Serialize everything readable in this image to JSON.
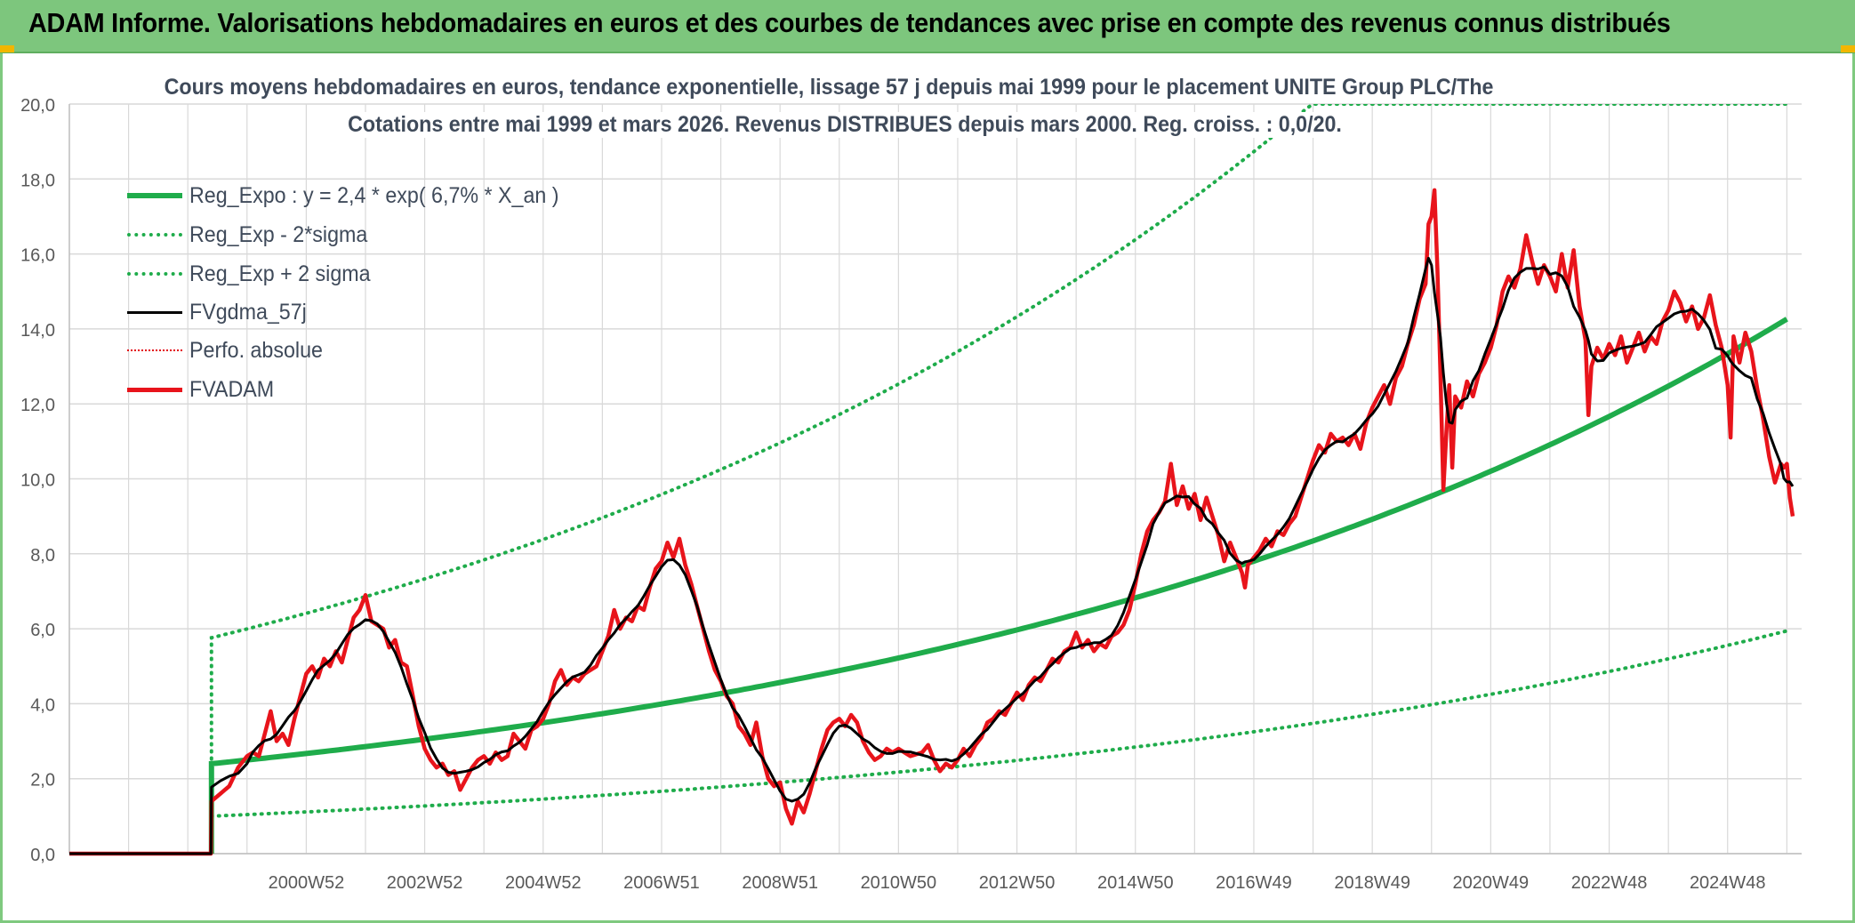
{
  "banner": {
    "title": "ADAM Informe. Valorisations hebdomadaires en euros et des courbes de tendances avec prise en compte des revenus connus distribués"
  },
  "chart_data": {
    "type": "line",
    "title_line1": "Cours moyens hebdomadaires en euros, tendance exponentielle, lissage 57 j depuis mai 1999 pour le placement UNITE Group PLC/The",
    "title_line2": "Cotations entre mai 1999 et mars 2026. Revenus DISTRIBUES depuis mars 2000. Reg. croiss. : 0,0/20.",
    "xlabel": "",
    "ylabel": "",
    "x_tick_labels": [
      "2000W52",
      "2002W52",
      "2004W52",
      "2006W51",
      "2008W51",
      "2010W50",
      "2012W50",
      "2014W50",
      "2016W49",
      "2018W49",
      "2020W49",
      "2022W48",
      "2024W48"
    ],
    "x_tick_years": [
      2001.0,
      2003.0,
      2005.0,
      2007.0,
      2009.0,
      2011.0,
      2013.0,
      2015.0,
      2017.0,
      2019.0,
      2021.0,
      2023.0,
      2025.0
    ],
    "x_range": [
      1997.0,
      2026.25
    ],
    "y_tick_labels": [
      "0,0",
      "2,0",
      "4,0",
      "6,0",
      "8,0",
      "10,0",
      "12,0",
      "14,0",
      "16,0",
      "18,0",
      "20,0"
    ],
    "ylim": [
      0,
      20
    ],
    "grid": true,
    "legend_position": "top-left",
    "colors": {
      "reg": "#1fac4b",
      "sigma": "#1fac4b",
      "fvgdma": "#000000",
      "perfo": "#e30613",
      "fvadam": "#e8141b",
      "grid": "#d9d9d9",
      "axis_text": "#595959",
      "title_text": "#3f4a5a"
    },
    "regression": {
      "a": 2.4,
      "g": 0.067,
      "start_year": 1999.4,
      "end_year": 2026.0,
      "sigma_factor": 2.4
    },
    "series": [
      {
        "name": "Reg_Expo : y = 2,4 * exp( 6,7% *  X_an )",
        "key": "reg",
        "style": "solid-thick"
      },
      {
        "name": "Reg_Exp - 2*sigma",
        "key": "lower",
        "style": "dotted"
      },
      {
        "name": "Reg_Exp + 2 sigma",
        "key": "upper",
        "style": "dotted"
      },
      {
        "name": "FVgdma_57j",
        "key": "fvgdma",
        "style": "solid-thin"
      },
      {
        "name": "Perfo. absolue",
        "key": "perfo",
        "style": "dotted-red"
      },
      {
        "name": "FVADAM",
        "key": "fvadam",
        "style": "solid-red",
        "points": [
          [
            1997.0,
            0.0
          ],
          [
            1999.39,
            0.0
          ],
          [
            1999.4,
            1.4
          ],
          [
            1999.55,
            1.6
          ],
          [
            1999.7,
            1.8
          ],
          [
            1999.85,
            2.3
          ],
          [
            2000.0,
            2.6
          ],
          [
            2000.1,
            2.7
          ],
          [
            2000.2,
            2.6
          ],
          [
            2000.3,
            3.2
          ],
          [
            2000.4,
            3.8
          ],
          [
            2000.5,
            3.0
          ],
          [
            2000.6,
            3.2
          ],
          [
            2000.7,
            2.9
          ],
          [
            2000.8,
            3.6
          ],
          [
            2000.9,
            4.2
          ],
          [
            2001.0,
            4.8
          ],
          [
            2001.1,
            5.0
          ],
          [
            2001.2,
            4.7
          ],
          [
            2001.3,
            5.2
          ],
          [
            2001.4,
            5.0
          ],
          [
            2001.5,
            5.4
          ],
          [
            2001.6,
            5.1
          ],
          [
            2001.7,
            5.7
          ],
          [
            2001.8,
            6.3
          ],
          [
            2001.9,
            6.5
          ],
          [
            2002.0,
            6.9
          ],
          [
            2002.1,
            6.2
          ],
          [
            2002.2,
            6.1
          ],
          [
            2002.3,
            6.0
          ],
          [
            2002.4,
            5.5
          ],
          [
            2002.5,
            5.7
          ],
          [
            2002.6,
            5.1
          ],
          [
            2002.7,
            5.0
          ],
          [
            2002.8,
            4.2
          ],
          [
            2002.9,
            3.4
          ],
          [
            2003.0,
            2.8
          ],
          [
            2003.1,
            2.5
          ],
          [
            2003.2,
            2.3
          ],
          [
            2003.3,
            2.4
          ],
          [
            2003.4,
            2.1
          ],
          [
            2003.5,
            2.2
          ],
          [
            2003.6,
            1.7
          ],
          [
            2003.7,
            2.0
          ],
          [
            2003.8,
            2.3
          ],
          [
            2003.9,
            2.5
          ],
          [
            2004.0,
            2.6
          ],
          [
            2004.1,
            2.4
          ],
          [
            2004.2,
            2.7
          ],
          [
            2004.3,
            2.5
          ],
          [
            2004.4,
            2.6
          ],
          [
            2004.5,
            3.2
          ],
          [
            2004.6,
            3.0
          ],
          [
            2004.7,
            2.8
          ],
          [
            2004.8,
            3.3
          ],
          [
            2004.9,
            3.4
          ],
          [
            2005.0,
            3.6
          ],
          [
            2005.1,
            4.0
          ],
          [
            2005.2,
            4.6
          ],
          [
            2005.3,
            4.9
          ],
          [
            2005.4,
            4.5
          ],
          [
            2005.5,
            4.7
          ],
          [
            2005.6,
            4.6
          ],
          [
            2005.7,
            4.8
          ],
          [
            2005.8,
            4.9
          ],
          [
            2005.9,
            5.0
          ],
          [
            2006.0,
            5.4
          ],
          [
            2006.1,
            5.8
          ],
          [
            2006.2,
            6.5
          ],
          [
            2006.3,
            6.0
          ],
          [
            2006.4,
            6.3
          ],
          [
            2006.5,
            6.2
          ],
          [
            2006.6,
            6.6
          ],
          [
            2006.7,
            6.5
          ],
          [
            2006.8,
            7.1
          ],
          [
            2006.9,
            7.6
          ],
          [
            2007.0,
            7.8
          ],
          [
            2007.1,
            8.3
          ],
          [
            2007.2,
            7.9
          ],
          [
            2007.3,
            8.4
          ],
          [
            2007.4,
            7.7
          ],
          [
            2007.5,
            7.2
          ],
          [
            2007.6,
            6.6
          ],
          [
            2007.7,
            6.0
          ],
          [
            2007.8,
            5.4
          ],
          [
            2007.9,
            4.9
          ],
          [
            2008.0,
            4.6
          ],
          [
            2008.1,
            4.2
          ],
          [
            2008.2,
            4.0
          ],
          [
            2008.3,
            3.4
          ],
          [
            2008.4,
            3.2
          ],
          [
            2008.5,
            2.9
          ],
          [
            2008.6,
            3.5
          ],
          [
            2008.7,
            2.6
          ],
          [
            2008.8,
            2.0
          ],
          [
            2008.9,
            1.8
          ],
          [
            2009.0,
            1.9
          ],
          [
            2009.1,
            1.2
          ],
          [
            2009.2,
            0.8
          ],
          [
            2009.3,
            1.4
          ],
          [
            2009.4,
            1.1
          ],
          [
            2009.5,
            1.6
          ],
          [
            2009.6,
            2.2
          ],
          [
            2009.7,
            2.8
          ],
          [
            2009.8,
            3.3
          ],
          [
            2009.9,
            3.5
          ],
          [
            2010.0,
            3.6
          ],
          [
            2010.1,
            3.4
          ],
          [
            2010.2,
            3.7
          ],
          [
            2010.3,
            3.5
          ],
          [
            2010.4,
            3.0
          ],
          [
            2010.5,
            2.7
          ],
          [
            2010.6,
            2.5
          ],
          [
            2010.7,
            2.6
          ],
          [
            2010.8,
            2.8
          ],
          [
            2010.9,
            2.7
          ],
          [
            2011.0,
            2.8
          ],
          [
            2011.2,
            2.6
          ],
          [
            2011.4,
            2.7
          ],
          [
            2011.5,
            2.9
          ],
          [
            2011.6,
            2.5
          ],
          [
            2011.7,
            2.2
          ],
          [
            2011.8,
            2.4
          ],
          [
            2011.9,
            2.3
          ],
          [
            2012.0,
            2.5
          ],
          [
            2012.1,
            2.8
          ],
          [
            2012.2,
            2.6
          ],
          [
            2012.3,
            2.9
          ],
          [
            2012.4,
            3.1
          ],
          [
            2012.5,
            3.5
          ],
          [
            2012.6,
            3.6
          ],
          [
            2012.7,
            3.8
          ],
          [
            2012.8,
            3.7
          ],
          [
            2012.9,
            4.0
          ],
          [
            2013.0,
            4.3
          ],
          [
            2013.1,
            4.1
          ],
          [
            2013.2,
            4.5
          ],
          [
            2013.3,
            4.7
          ],
          [
            2013.4,
            4.6
          ],
          [
            2013.5,
            4.9
          ],
          [
            2013.6,
            5.2
          ],
          [
            2013.7,
            5.1
          ],
          [
            2013.8,
            5.4
          ],
          [
            2013.9,
            5.5
          ],
          [
            2014.0,
            5.9
          ],
          [
            2014.1,
            5.5
          ],
          [
            2014.2,
            5.7
          ],
          [
            2014.3,
            5.4
          ],
          [
            2014.4,
            5.6
          ],
          [
            2014.5,
            5.5
          ],
          [
            2014.6,
            5.8
          ],
          [
            2014.7,
            5.9
          ],
          [
            2014.8,
            6.1
          ],
          [
            2014.9,
            6.5
          ],
          [
            2015.0,
            7.2
          ],
          [
            2015.1,
            8.0
          ],
          [
            2015.2,
            8.6
          ],
          [
            2015.3,
            8.9
          ],
          [
            2015.4,
            9.1
          ],
          [
            2015.5,
            9.4
          ],
          [
            2015.6,
            10.4
          ],
          [
            2015.7,
            9.3
          ],
          [
            2015.8,
            9.8
          ],
          [
            2015.9,
            9.2
          ],
          [
            2016.0,
            9.6
          ],
          [
            2016.1,
            8.9
          ],
          [
            2016.2,
            9.5
          ],
          [
            2016.3,
            9.0
          ],
          [
            2016.4,
            8.5
          ],
          [
            2016.5,
            7.8
          ],
          [
            2016.6,
            8.3
          ],
          [
            2016.7,
            7.9
          ],
          [
            2016.8,
            7.5
          ],
          [
            2016.85,
            7.1
          ],
          [
            2016.9,
            7.7
          ],
          [
            2017.0,
            7.9
          ],
          [
            2017.1,
            8.1
          ],
          [
            2017.2,
            8.4
          ],
          [
            2017.3,
            8.2
          ],
          [
            2017.4,
            8.6
          ],
          [
            2017.5,
            8.5
          ],
          [
            2017.6,
            8.8
          ],
          [
            2017.7,
            9.0
          ],
          [
            2017.8,
            9.5
          ],
          [
            2017.9,
            10.0
          ],
          [
            2018.0,
            10.5
          ],
          [
            2018.1,
            10.9
          ],
          [
            2018.2,
            10.7
          ],
          [
            2018.3,
            11.2
          ],
          [
            2018.4,
            11.0
          ],
          [
            2018.5,
            11.1
          ],
          [
            2018.6,
            10.9
          ],
          [
            2018.7,
            11.2
          ],
          [
            2018.8,
            10.8
          ],
          [
            2018.9,
            11.5
          ],
          [
            2019.0,
            11.9
          ],
          [
            2019.1,
            12.2
          ],
          [
            2019.2,
            12.5
          ],
          [
            2019.3,
            12.0
          ],
          [
            2019.4,
            12.7
          ],
          [
            2019.5,
            13.0
          ],
          [
            2019.6,
            13.6
          ],
          [
            2019.7,
            14.1
          ],
          [
            2019.8,
            14.8
          ],
          [
            2019.9,
            15.2
          ],
          [
            2019.95,
            16.8
          ],
          [
            2020.0,
            17.0
          ],
          [
            2020.05,
            17.7
          ],
          [
            2020.1,
            15.6
          ],
          [
            2020.15,
            12.8
          ],
          [
            2020.2,
            9.7
          ],
          [
            2020.25,
            11.2
          ],
          [
            2020.3,
            12.5
          ],
          [
            2020.35,
            10.3
          ],
          [
            2020.4,
            12.2
          ],
          [
            2020.5,
            11.9
          ],
          [
            2020.6,
            12.6
          ],
          [
            2020.7,
            12.2
          ],
          [
            2020.8,
            12.8
          ],
          [
            2020.9,
            13.1
          ],
          [
            2021.0,
            13.5
          ],
          [
            2021.1,
            14.1
          ],
          [
            2021.2,
            15.0
          ],
          [
            2021.3,
            15.4
          ],
          [
            2021.4,
            15.1
          ],
          [
            2021.5,
            15.6
          ],
          [
            2021.6,
            16.5
          ],
          [
            2021.7,
            15.8
          ],
          [
            2021.8,
            15.2
          ],
          [
            2021.9,
            15.7
          ],
          [
            2022.0,
            15.4
          ],
          [
            2022.1,
            15.0
          ],
          [
            2022.2,
            16.0
          ],
          [
            2022.3,
            15.1
          ],
          [
            2022.4,
            16.1
          ],
          [
            2022.5,
            14.6
          ],
          [
            2022.6,
            13.7
          ],
          [
            2022.65,
            11.7
          ],
          [
            2022.7,
            13.0
          ],
          [
            2022.8,
            13.5
          ],
          [
            2022.9,
            13.2
          ],
          [
            2023.0,
            13.6
          ],
          [
            2023.1,
            13.3
          ],
          [
            2023.2,
            13.8
          ],
          [
            2023.3,
            13.1
          ],
          [
            2023.4,
            13.5
          ],
          [
            2023.5,
            13.9
          ],
          [
            2023.6,
            13.4
          ],
          [
            2023.7,
            13.8
          ],
          [
            2023.8,
            13.6
          ],
          [
            2023.9,
            14.2
          ],
          [
            2024.0,
            14.5
          ],
          [
            2024.1,
            15.0
          ],
          [
            2024.2,
            14.7
          ],
          [
            2024.3,
            14.2
          ],
          [
            2024.4,
            14.6
          ],
          [
            2024.5,
            14.0
          ],
          [
            2024.6,
            14.3
          ],
          [
            2024.7,
            14.9
          ],
          [
            2024.8,
            14.1
          ],
          [
            2024.9,
            13.5
          ],
          [
            2025.0,
            12.5
          ],
          [
            2025.05,
            11.1
          ],
          [
            2025.1,
            13.8
          ],
          [
            2025.2,
            13.1
          ],
          [
            2025.3,
            13.9
          ],
          [
            2025.4,
            13.4
          ],
          [
            2025.5,
            12.4
          ],
          [
            2025.6,
            11.6
          ],
          [
            2025.7,
            10.6
          ],
          [
            2025.8,
            9.9
          ],
          [
            2025.9,
            10.4
          ],
          [
            2025.95,
            10.3
          ],
          [
            2026.0,
            10.4
          ],
          [
            2026.05,
            9.5
          ],
          [
            2026.1,
            9.0
          ]
        ]
      }
    ]
  }
}
